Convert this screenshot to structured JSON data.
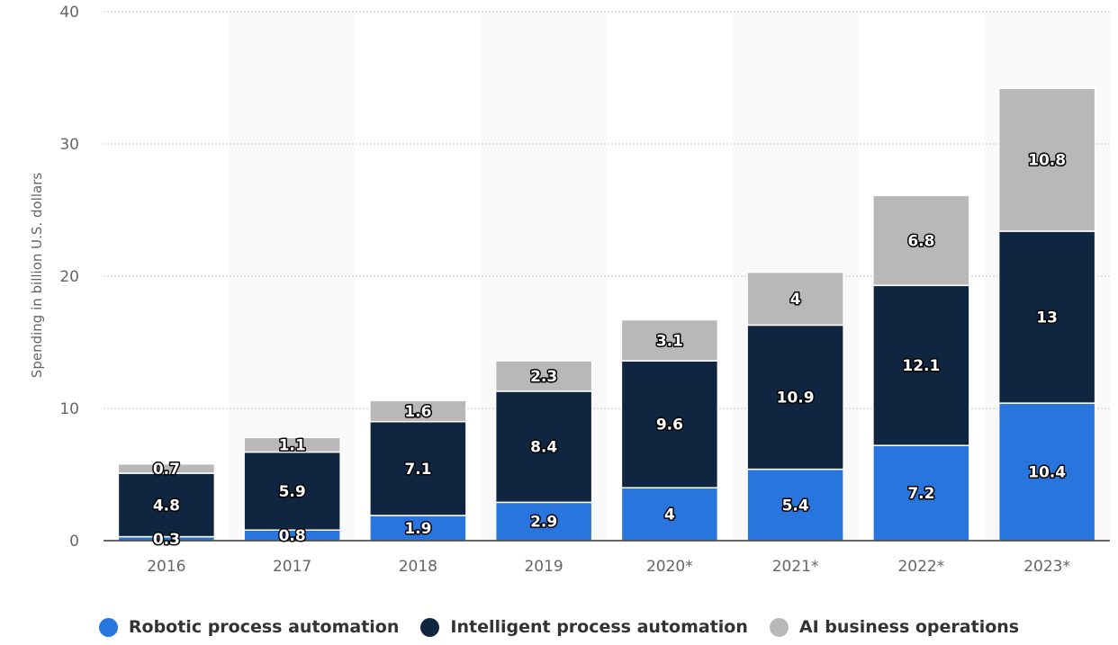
{
  "chart_data": {
    "type": "bar",
    "stacked": true,
    "categories": [
      "2016",
      "2017",
      "2018",
      "2019",
      "2020*",
      "2021*",
      "2022*",
      "2023*"
    ],
    "series": [
      {
        "name": "Robotic process automation",
        "color": "#2876dd",
        "values": [
          0.3,
          0.8,
          1.9,
          2.9,
          4,
          5.4,
          7.2,
          10.4
        ]
      },
      {
        "name": "Intelligent process automation",
        "color": "#10253f",
        "values": [
          4.8,
          5.9,
          7.1,
          8.4,
          9.6,
          10.9,
          12.1,
          13
        ]
      },
      {
        "name": "AI business operations",
        "color": "#b8b8b8",
        "values": [
          0.7,
          1.1,
          1.6,
          2.3,
          3.1,
          4,
          6.8,
          10.8
        ]
      }
    ],
    "title": "",
    "xlabel": "",
    "ylabel": "Spending in billion U.S. dollars",
    "ylim": [
      0,
      40
    ],
    "yticks": [
      0,
      10,
      20,
      30,
      40
    ],
    "grid": true,
    "legend_position": "bottom",
    "data_labels": true,
    "band_color": "#f9f9f9"
  }
}
